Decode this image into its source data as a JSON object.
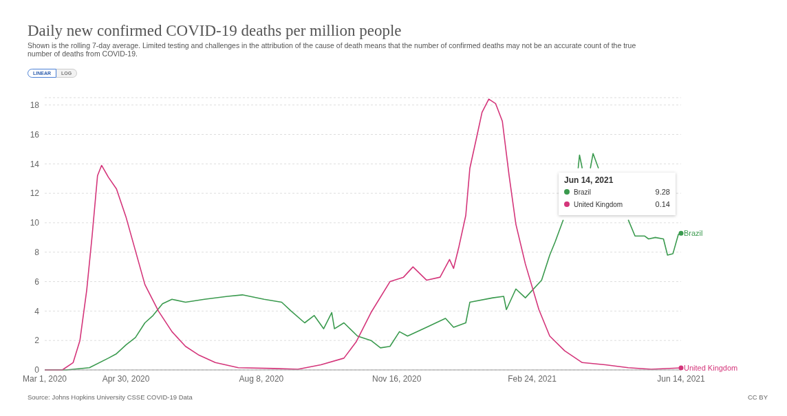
{
  "chart_data": {
    "type": "line",
    "title": "Daily new confirmed COVID-19 deaths per million people",
    "subtitle": "Shown is the rolling 7-day average. Limited testing and challenges in the attribution of the cause of death means that the number of confirmed deaths may not be an accurate count of the true number of deaths from COVID-19.",
    "xlim": [
      "2020-03-01",
      "2021-06-14"
    ],
    "xticks": [
      {
        "value": "2020-03-01",
        "label": "Mar 1, 2020"
      },
      {
        "value": "2020-04-30",
        "label": "Apr 30, 2020"
      },
      {
        "value": "2020-08-08",
        "label": "Aug 8, 2020"
      },
      {
        "value": "2020-11-16",
        "label": "Nov 16, 2020"
      },
      {
        "value": "2021-02-24",
        "label": "Feb 24, 2021"
      },
      {
        "value": "2021-06-14",
        "label": "Jun 14, 2021"
      }
    ],
    "ylim": [
      0,
      18.5
    ],
    "legend": "right",
    "yticks": [
      0,
      2,
      4,
      6,
      8,
      10,
      12,
      14,
      16,
      18
    ],
    "grid": "y",
    "series": [
      {
        "name": "Brazil",
        "color": "#3a9a4e",
        "x": [
          "2020-03-01",
          "2020-03-17",
          "2020-04-03",
          "2020-04-17",
          "2020-04-23",
          "2020-04-30",
          "2020-05-07",
          "2020-05-14",
          "2020-05-20",
          "2020-05-27",
          "2020-06-03",
          "2020-06-13",
          "2020-06-27",
          "2020-07-14",
          "2020-07-25",
          "2020-08-10",
          "2020-08-23",
          "2020-08-30",
          "2020-09-09",
          "2020-09-16",
          "2020-09-23",
          "2020-09-29",
          "2020-10-01",
          "2020-10-08",
          "2020-10-18",
          "2020-10-28",
          "2020-11-04",
          "2020-11-11",
          "2020-11-18",
          "2020-11-24",
          "2020-12-08",
          "2020-12-22",
          "2020-12-28",
          "2021-01-06",
          "2021-01-09",
          "2021-01-26",
          "2021-02-03",
          "2021-02-05",
          "2021-02-12",
          "2021-02-19",
          "2021-03-03",
          "2021-03-09",
          "2021-03-13",
          "2021-03-19",
          "2021-03-24",
          "2021-03-30",
          "2021-03-31",
          "2021-04-02",
          "2021-04-05",
          "2021-04-08",
          "2021-04-10",
          "2021-04-14",
          "2021-04-20",
          "2021-05-06",
          "2021-05-11",
          "2021-05-18",
          "2021-05-21",
          "2021-05-26",
          "2021-06-01",
          "2021-06-04",
          "2021-06-08",
          "2021-06-12",
          "2021-06-14"
        ],
        "values": [
          0,
          0,
          0.15,
          0.8,
          1.1,
          1.7,
          2.2,
          3.2,
          3.7,
          4.5,
          4.8,
          4.6,
          4.8,
          5.0,
          5.1,
          4.8,
          4.6,
          4.0,
          3.2,
          3.7,
          2.8,
          3.9,
          2.8,
          3.2,
          2.3,
          2.0,
          1.5,
          1.6,
          2.6,
          2.3,
          2.9,
          3.5,
          2.9,
          3.2,
          4.6,
          4.9,
          5.0,
          4.1,
          5.5,
          4.9,
          6.1,
          7.8,
          8.7,
          10.2,
          null,
          13.7,
          14.6,
          13.7,
          null,
          13.7,
          14.7,
          13.7,
          null,
          10.2,
          9.1,
          9.1,
          8.9,
          9.0,
          8.9,
          7.8,
          7.9,
          9.2,
          9.28
        ]
      },
      {
        "name": "United Kingdom",
        "color": "#d4357a",
        "x": [
          "2020-03-01",
          "2020-03-14",
          "2020-03-22",
          "2020-03-27",
          "2020-04-01",
          "2020-04-05",
          "2020-04-09",
          "2020-04-12",
          "2020-04-17",
          "2020-04-23",
          "2020-04-30",
          "2020-05-07",
          "2020-05-14",
          "2020-05-24",
          "2020-06-03",
          "2020-06-13",
          "2020-06-23",
          "2020-07-05",
          "2020-07-22",
          "2020-08-17",
          "2020-09-04",
          "2020-09-21",
          "2020-10-08",
          "2020-10-17",
          "2020-10-28",
          "2020-11-11",
          "2020-11-21",
          "2020-11-28",
          "2020-12-08",
          "2020-12-18",
          "2020-12-25",
          "2020-12-28",
          "2021-01-01",
          "2021-01-06",
          "2021-01-09",
          "2021-01-14",
          "2021-01-18",
          "2021-01-23",
          "2021-01-28",
          "2021-02-02",
          "2021-02-07",
          "2021-02-12",
          "2021-02-19",
          "2021-03-01",
          "2021-03-09",
          "2021-03-20",
          "2021-04-02",
          "2021-04-19",
          "2021-05-06",
          "2021-05-23",
          "2021-06-14"
        ],
        "values": [
          0,
          0,
          0.5,
          2.0,
          5.4,
          9.1,
          13.2,
          13.9,
          13.1,
          12.3,
          10.4,
          8.1,
          5.8,
          4.0,
          2.6,
          1.6,
          1.0,
          0.5,
          0.15,
          0.1,
          0.05,
          0.35,
          0.8,
          1.9,
          3.9,
          6.0,
          6.3,
          7.0,
          6.1,
          6.3,
          7.5,
          6.9,
          8.4,
          10.5,
          13.7,
          15.8,
          17.5,
          18.4,
          18.1,
          16.9,
          13.2,
          9.9,
          7.2,
          4.1,
          2.3,
          1.3,
          0.5,
          0.35,
          0.15,
          0.05,
          0.14
        ]
      }
    ],
    "annotations": [
      "LINEAR",
      "LOG",
      "Jun 14, 2021",
      "9.28",
      "0.14",
      "Source: Johns Hopkins University CSSE COVID-19 Data",
      "CC BY"
    ]
  }
}
